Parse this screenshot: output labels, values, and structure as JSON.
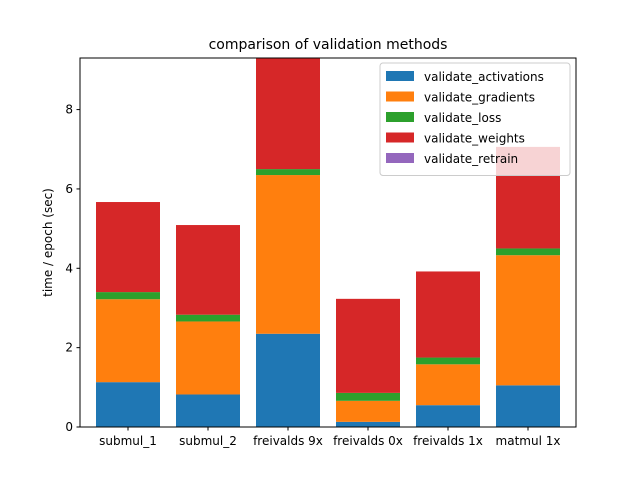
{
  "chart_data": {
    "type": "bar",
    "stacked": true,
    "title": "comparison of validation methods",
    "xlabel": "",
    "ylabel": "time / epoch (sec)",
    "ylim": [
      0,
      9.3
    ],
    "yticks": [
      0,
      2,
      4,
      6,
      8
    ],
    "grid": false,
    "legend_position": "top-right",
    "categories": [
      "submul_1",
      "submul_2",
      "freivalds 9x",
      "freivalds 0x",
      "freivalds 1x",
      "matmul 1x"
    ],
    "series": [
      {
        "name": "validate_activations",
        "color": "#1f77b4",
        "values": [
          1.13,
          0.82,
          2.35,
          0.13,
          0.55,
          1.05
        ]
      },
      {
        "name": "validate_gradients",
        "color": "#ff7f0e",
        "values": [
          2.09,
          1.84,
          4.0,
          0.53,
          1.03,
          3.28
        ]
      },
      {
        "name": "validate_loss",
        "color": "#2ca02c",
        "values": [
          0.18,
          0.17,
          0.15,
          0.2,
          0.17,
          0.17
        ]
      },
      {
        "name": "validate_weights",
        "color": "#d62728",
        "values": [
          2.27,
          2.26,
          2.8,
          2.37,
          2.17,
          2.56
        ]
      },
      {
        "name": "validate_retrain",
        "color": "#9467bd",
        "values": [
          0,
          0,
          0,
          0,
          0,
          0
        ]
      }
    ]
  }
}
